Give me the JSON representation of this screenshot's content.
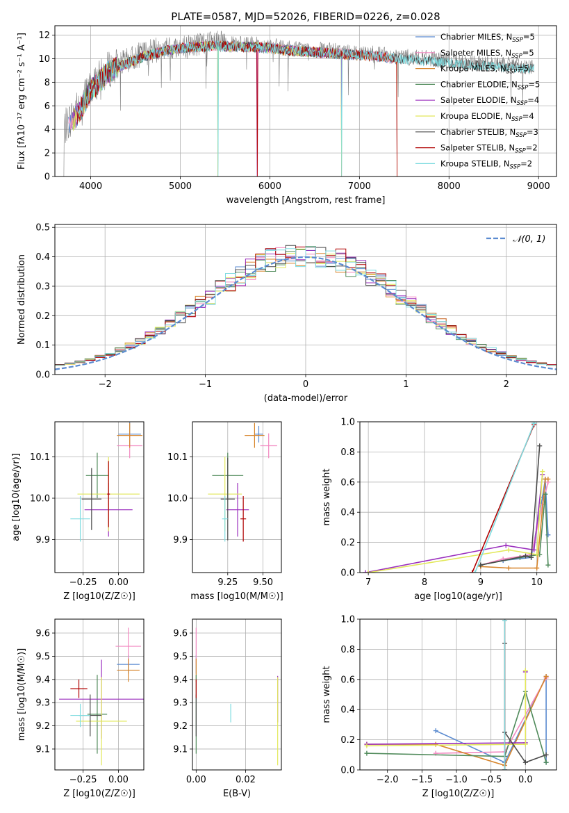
{
  "figure_title": "PLATE=0587, MJD=52026, FIBERID=0226, z=0.028",
  "series_colors": [
    "#5b8bd0",
    "#f288c0",
    "#d7852c",
    "#4f8a5a",
    "#9b2fbe",
    "#e2e85a",
    "#4a4a4a",
    "#b00000",
    "#80dce0"
  ],
  "chart_data": [
    {
      "id": "spectrum",
      "type": "line",
      "title": "PLATE=0587, MJD=52026, FIBERID=0226, z=0.028",
      "xlabel": "wavelength [Angstrom, rest frame]",
      "ylabel": "Flux [fλ10⁻¹⁷ erg cm⁻² s⁻¹ A⁻¹]",
      "xlim": [
        3600,
        9200
      ],
      "ylim": [
        0,
        12.8
      ],
      "xticks": [
        4000,
        5000,
        6000,
        7000,
        8000,
        9000
      ],
      "yticks": [
        0,
        2,
        4,
        6,
        8,
        10,
        12
      ],
      "legend_position": "top-right",
      "observed_trace": {
        "color": "#7f7f7f",
        "x": [
          3700,
          3800,
          3900,
          4000,
          4100,
          4200,
          4400,
          4600,
          4800,
          5000,
          5200,
          5400,
          5600,
          5800,
          6000,
          6200,
          6400,
          6600,
          6800,
          7000,
          7200,
          7400,
          7600,
          7800,
          8000,
          8200,
          8400,
          8600,
          8800,
          8950
        ],
        "y": [
          4.0,
          5.2,
          6.4,
          7.6,
          8.3,
          9.1,
          9.8,
          10.5,
          10.8,
          11.0,
          11.2,
          11.3,
          11.2,
          11.2,
          11.1,
          10.9,
          10.8,
          10.7,
          10.6,
          10.5,
          10.4,
          10.2,
          10.1,
          10.0,
          9.8,
          9.7,
          9.6,
          9.5,
          9.4,
          9.3
        ]
      },
      "series": [
        {
          "name": "Chabrier MILES, N",
          "sub": "SSP",
          "suffix": "=5"
        },
        {
          "name": "Salpeter MILES, N",
          "sub": "SSP",
          "suffix": "=5"
        },
        {
          "name": "Kroupa MILES, N",
          "sub": "SSP",
          "suffix": "=5"
        },
        {
          "name": "Chabrier ELODIE, N",
          "sub": "SSP",
          "suffix": "=5"
        },
        {
          "name": "Salpeter ELODIE, N",
          "sub": "SSP",
          "suffix": "=4"
        },
        {
          "name": "Kroupa ELODIE, N",
          "sub": "SSP",
          "suffix": "=4"
        },
        {
          "name": "Chabrier STELIB, N",
          "sub": "SSP",
          "suffix": "=3"
        },
        {
          "name": "Salpeter STELIB, N",
          "sub": "SSP",
          "suffix": "=2"
        },
        {
          "name": "Kroupa STELIB, N",
          "sub": "SSP",
          "suffix": "=2"
        }
      ],
      "model_range": [
        [
          3750,
          7420
        ],
        [
          3750,
          7420
        ],
        [
          3800,
          7420
        ],
        [
          3800,
          6800
        ],
        [
          3800,
          6800
        ],
        [
          3800,
          6800
        ],
        [
          3900,
          8950
        ],
        [
          3850,
          7420
        ],
        [
          3850,
          8950
        ]
      ],
      "model_flux_x": [
        3750,
        3900,
        4000,
        4200,
        4400,
        4600,
        4800,
        5000,
        5200,
        5400,
        5600,
        5800,
        6000,
        6200,
        6400,
        6600,
        6800,
        7000,
        7200,
        7400,
        7600,
        7800,
        8000,
        8200,
        8400,
        8600,
        8800,
        8950
      ],
      "model_flux_y": [
        4.2,
        5.8,
        7.3,
        8.9,
        9.6,
        10.2,
        10.6,
        10.9,
        11.0,
        11.1,
        11.0,
        11.0,
        10.9,
        10.7,
        10.6,
        10.5,
        10.4,
        10.3,
        10.2,
        10.0,
        9.9,
        9.8,
        9.6,
        9.5,
        9.4,
        9.3,
        9.2,
        9.2
      ],
      "absorption_dips": [
        5420,
        5860,
        6800,
        7420
      ]
    },
    {
      "id": "residuals",
      "type": "histogram",
      "xlabel": "(data-model)/error",
      "ylabel": "Normed distribution",
      "xlim": [
        -2.5,
        2.5
      ],
      "ylim": [
        0,
        0.51
      ],
      "xticks": [
        -2,
        -1,
        0,
        1,
        2
      ],
      "yticks": [
        0.0,
        0.1,
        0.2,
        0.3,
        0.4,
        0.5
      ],
      "bin_width": 0.1,
      "legend": {
        "label": "𝒩(0, 1)",
        "position": "top-right"
      },
      "reference_curve": {
        "type": "gaussian",
        "mean": 0,
        "sigma": 1,
        "color": "#5b8bd0"
      }
    },
    {
      "id": "age_vs_Z",
      "type": "errorbar",
      "xlabel": "Z [log10(Z/Z☉)]",
      "ylabel": "age  [log10(age/yr)]",
      "xlim": [
        -0.45,
        0.18
      ],
      "ylim": [
        9.82,
        10.185
      ],
      "xticks": [
        -0.25,
        0.0
      ],
      "yticks": [
        9.9,
        10.0,
        10.1
      ],
      "points": [
        {
          "x": 0.08,
          "y": 10.155,
          "xerr": 0.08,
          "yerr": 0.03
        },
        {
          "x": 0.08,
          "y": 10.127,
          "xerr": 0.09,
          "yerr": 0.03
        },
        {
          "x": 0.08,
          "y": 10.152,
          "xerr": 0.09,
          "yerr": 0.03
        },
        {
          "x": -0.15,
          "y": 10.055,
          "xerr": 0.08,
          "yerr": 0.055
        },
        {
          "x": -0.07,
          "y": 9.972,
          "xerr": 0.17,
          "yerr": 0.065
        },
        {
          "x": -0.07,
          "y": 10.01,
          "xerr": 0.22,
          "yerr": 0.09
        },
        {
          "x": -0.19,
          "y": 9.998,
          "xerr": 0.07,
          "yerr": 0.075
        },
        {
          "x": -0.07,
          "y": 10.01,
          "xerr": 0.01,
          "yerr": 0.08
        },
        {
          "x": -0.27,
          "y": 9.95,
          "xerr": 0.07,
          "yerr": 0.055
        }
      ]
    },
    {
      "id": "age_vs_mass",
      "type": "errorbar",
      "xlabel": "mass [log10(M/M☉)]",
      "ylabel": "",
      "xlim": [
        9.0,
        9.63
      ],
      "ylim": [
        9.82,
        10.185
      ],
      "xticks": [
        9.25,
        9.5
      ],
      "yticks": [
        9.9,
        10.0,
        10.1
      ],
      "points": [
        {
          "x": 9.47,
          "y": 10.155,
          "xerr": 0.03,
          "yerr": 0.02
        },
        {
          "x": 9.54,
          "y": 10.127,
          "xerr": 0.06,
          "yerr": 0.03
        },
        {
          "x": 9.44,
          "y": 10.152,
          "xerr": 0.07,
          "yerr": 0.03
        },
        {
          "x": 9.25,
          "y": 10.055,
          "xerr": 0.11,
          "yerr": 0.055
        },
        {
          "x": 9.32,
          "y": 9.972,
          "xerr": 0.08,
          "yerr": 0.065
        },
        {
          "x": 9.23,
          "y": 10.01,
          "xerr": 0.12,
          "yerr": 0.09
        },
        {
          "x": 9.25,
          "y": 9.998,
          "xerr": 0.05,
          "yerr": 0.1
        },
        {
          "x": 9.36,
          "y": 9.95,
          "xerr": 0.02,
          "yerr": 0.055
        },
        {
          "x": 9.23,
          "y": 9.95,
          "xerr": 0.02,
          "yerr": 0.055
        }
      ]
    },
    {
      "id": "weight_vs_age",
      "type": "line",
      "xlabel": "age  [log10(age/yr)]",
      "ylabel": "mass weight",
      "xlim": [
        6.85,
        10.35
      ],
      "ylim": [
        0,
        1.0
      ],
      "xticks": [
        7,
        8,
        9,
        10
      ],
      "yticks": [
        0.0,
        0.2,
        0.4,
        0.6,
        0.8,
        1.0
      ],
      "series": [
        {
          "x": [
            9.0,
            9.4,
            9.9,
            10.1,
            10.15,
            10.2
          ],
          "y": [
            0.05,
            0.08,
            0.1,
            0.5,
            0.62,
            0.25
          ]
        },
        {
          "x": [
            9.0,
            9.4,
            9.9,
            10.1,
            10.2
          ],
          "y": [
            0.05,
            0.09,
            0.12,
            0.45,
            0.6
          ]
        },
        {
          "x": [
            9.0,
            9.5,
            10.0,
            10.15,
            10.2
          ],
          "y": [
            0.04,
            0.03,
            0.03,
            0.62,
            0.62
          ]
        },
        {
          "x": [
            9.0,
            9.7,
            10.05,
            10.15,
            10.2
          ],
          "y": [
            0.05,
            0.1,
            0.12,
            0.52,
            0.05
          ]
        },
        {
          "x": [
            6.95,
            9.45,
            9.95,
            10.1
          ],
          "y": [
            0.0,
            0.18,
            0.15,
            0.65
          ]
        },
        {
          "x": [
            7.0,
            9.5,
            10.0,
            10.1
          ],
          "y": [
            0.0,
            0.15,
            0.12,
            0.67
          ]
        },
        {
          "x": [
            9.0,
            9.8,
            9.9,
            10.05
          ],
          "y": [
            0.05,
            0.11,
            0.1,
            0.84
          ]
        },
        {
          "x": [
            8.85,
            9.95
          ],
          "y": [
            0.0,
            0.98
          ]
        },
        {
          "x": [
            8.9,
            9.95
          ],
          "y": [
            0.0,
            0.99
          ]
        }
      ]
    },
    {
      "id": "mass_vs_Z",
      "type": "errorbar",
      "xlabel": "Z [log10(Z/Z☉)]",
      "ylabel": "mass [log10(M/M☉)]",
      "xlim": [
        -0.45,
        0.18
      ],
      "ylim": [
        9.01,
        9.66
      ],
      "xticks": [
        -0.25,
        0.0
      ],
      "yticks": [
        9.1,
        9.2,
        9.3,
        9.4,
        9.5,
        9.6
      ],
      "points": [
        {
          "x": 0.07,
          "y": 9.465,
          "xerr": 0.08,
          "yerr": 0.04
        },
        {
          "x": 0.07,
          "y": 9.543,
          "xerr": 0.09,
          "yerr": 0.08
        },
        {
          "x": 0.07,
          "y": 9.44,
          "xerr": 0.08,
          "yerr": 0.05
        },
        {
          "x": -0.15,
          "y": 9.25,
          "xerr": 0.07,
          "yerr": 0.17
        },
        {
          "x": -0.12,
          "y": 9.315,
          "xerr": 0.3,
          "yerr": 0.17
        },
        {
          "x": -0.12,
          "y": 9.22,
          "xerr": 0.18,
          "yerr": 0.19
        },
        {
          "x": -0.2,
          "y": 9.245,
          "xerr": 0.08,
          "yerr": 0.09
        },
        {
          "x": -0.28,
          "y": 9.36,
          "xerr": 0.06,
          "yerr": 0.04
        },
        {
          "x": -0.27,
          "y": 9.245,
          "xerr": 0.07,
          "yerr": 0.05
        }
      ]
    },
    {
      "id": "mass_vs_ebv",
      "type": "errorbar",
      "xlabel": "E(B-V)",
      "ylabel": "",
      "xlim": [
        -0.0015,
        0.0345
      ],
      "ylim": [
        9.01,
        9.66
      ],
      "xticks": [
        0.0,
        0.02
      ],
      "yticks": [
        9.1,
        9.2,
        9.3,
        9.4,
        9.5,
        9.6
      ],
      "points": [
        {
          "x": 0.0,
          "y": 9.465,
          "xerr": 0,
          "yerr": 0.04
        },
        {
          "x": 0.0,
          "y": 9.543,
          "xerr": 0,
          "yerr": 0.08
        },
        {
          "x": 0.0,
          "y": 9.44,
          "xerr": 0,
          "yerr": 0.05
        },
        {
          "x": 0.0,
          "y": 9.25,
          "xerr": 0,
          "yerr": 0.17
        },
        {
          "x": 0.033,
          "y": 9.315,
          "xerr": 0,
          "yerr": 0.1
        },
        {
          "x": 0.033,
          "y": 9.22,
          "xerr": 0,
          "yerr": 0.19
        },
        {
          "x": 0.0,
          "y": 9.245,
          "xerr": 0,
          "yerr": 0.09
        },
        {
          "x": 0.0,
          "y": 9.36,
          "xerr": 0,
          "yerr": 0.04
        },
        {
          "x": 0.014,
          "y": 9.255,
          "xerr": 0,
          "yerr": 0.04
        }
      ]
    },
    {
      "id": "weight_vs_Z",
      "type": "line",
      "xlabel": "Z [log10(Z/Z☉)]",
      "ylabel": "mass weight",
      "xlim": [
        -2.4,
        0.45
      ],
      "ylim": [
        0,
        1.0
      ],
      "xticks": [
        -2.0,
        -1.5,
        -1.0,
        -0.5,
        0.0
      ],
      "yticks": [
        0.0,
        0.2,
        0.4,
        0.6,
        0.8,
        1.0
      ],
      "series": [
        {
          "x": [
            -1.3,
            -0.3,
            0.3,
            0.3
          ],
          "y": [
            0.26,
            0.05,
            0.62,
            0.05
          ]
        },
        {
          "x": [
            -1.3,
            -0.3,
            0.3
          ],
          "y": [
            0.11,
            0.12,
            0.61
          ]
        },
        {
          "x": [
            -2.3,
            -1.3,
            -0.3,
            0.3
          ],
          "y": [
            0.17,
            0.17,
            0.03,
            0.62
          ]
        },
        {
          "x": [
            -2.3,
            -0.3,
            0.0,
            0.3
          ],
          "y": [
            0.11,
            0.09,
            0.52,
            0.05
          ]
        },
        {
          "x": [
            -2.3,
            0.0,
            0.0
          ],
          "y": [
            0.17,
            0.18,
            0.65
          ]
        },
        {
          "x": [
            -2.3,
            0.0,
            0.0
          ],
          "y": [
            0.16,
            0.17,
            0.66
          ]
        },
        {
          "x": [
            -0.3,
            -0.3,
            0.0,
            0.3
          ],
          "y": [
            0.84,
            0.25,
            0.05,
            0.1
          ]
        },
        {
          "x": [
            -0.3,
            -0.3
          ],
          "y": [
            0.99,
            0.0
          ]
        },
        {
          "x": [
            -0.3,
            -0.3
          ],
          "y": [
            0.99,
            0.0
          ]
        }
      ]
    }
  ]
}
